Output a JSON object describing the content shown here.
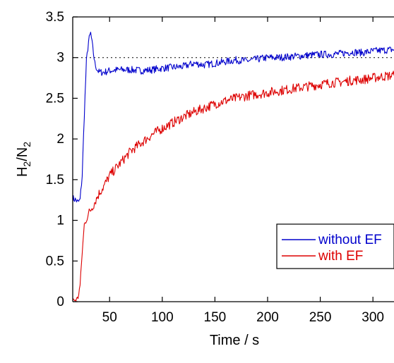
{
  "chart_data": {
    "type": "line",
    "xlabel": "Time / s",
    "ylabel": {
      "base_h": "H",
      "sub_h": "2",
      "slash": "/N",
      "sub_n": "2"
    },
    "xlim": [
      15,
      320
    ],
    "ylim": [
      0,
      3.5
    ],
    "xticks": [
      50,
      100,
      150,
      200,
      250,
      300
    ],
    "xtick_labels": [
      "50",
      "100",
      "150",
      "200",
      "250",
      "300"
    ],
    "yticks": [
      0,
      0.5,
      1,
      1.5,
      2,
      2.5,
      3,
      3.5
    ],
    "ytick_labels": [
      "0",
      "0.5",
      "1",
      "1.5",
      "2",
      "2.5",
      "3",
      "3.5"
    ],
    "reference_line": {
      "y": 3.0,
      "style": "dotted"
    },
    "legend_position": "right",
    "series": [
      {
        "name": "without EF",
        "color": "#0000cc",
        "x": [
          15,
          18,
          20,
          22,
          24,
          26,
          28,
          30,
          32,
          34,
          36,
          38,
          40,
          45,
          50,
          60,
          70,
          80,
          90,
          100,
          110,
          120,
          130,
          140,
          150,
          160,
          170,
          180,
          190,
          200,
          210,
          220,
          230,
          240,
          250,
          260,
          270,
          280,
          290,
          300,
          310,
          320
        ],
        "y": [
          1.27,
          1.25,
          1.22,
          1.25,
          1.55,
          2.3,
          2.95,
          3.2,
          3.3,
          3.12,
          2.93,
          2.86,
          2.82,
          2.82,
          2.84,
          2.85,
          2.85,
          2.84,
          2.85,
          2.87,
          2.88,
          2.89,
          2.93,
          2.91,
          2.93,
          2.95,
          2.97,
          2.96,
          2.98,
          3.0,
          3.0,
          3.01,
          3.02,
          3.03,
          3.04,
          3.04,
          3.05,
          3.07,
          3.06,
          3.08,
          3.09,
          3.1
        ]
      },
      {
        "name": "with EF",
        "color": "#dd0000",
        "x": [
          15,
          18,
          20,
          22,
          24,
          26,
          28,
          30,
          35,
          40,
          45,
          50,
          60,
          70,
          80,
          90,
          100,
          110,
          120,
          130,
          140,
          150,
          160,
          170,
          180,
          190,
          200,
          210,
          220,
          230,
          240,
          250,
          260,
          270,
          280,
          290,
          300,
          310,
          320
        ],
        "y": [
          0.02,
          0.02,
          0.05,
          0.2,
          0.6,
          0.95,
          1.0,
          1.08,
          1.2,
          1.33,
          1.43,
          1.55,
          1.7,
          1.85,
          1.95,
          2.05,
          2.13,
          2.2,
          2.27,
          2.33,
          2.38,
          2.43,
          2.47,
          2.5,
          2.53,
          2.55,
          2.57,
          2.59,
          2.61,
          2.63,
          2.65,
          2.67,
          2.69,
          2.7,
          2.72,
          2.73,
          2.75,
          2.77,
          2.78
        ]
      }
    ]
  }
}
